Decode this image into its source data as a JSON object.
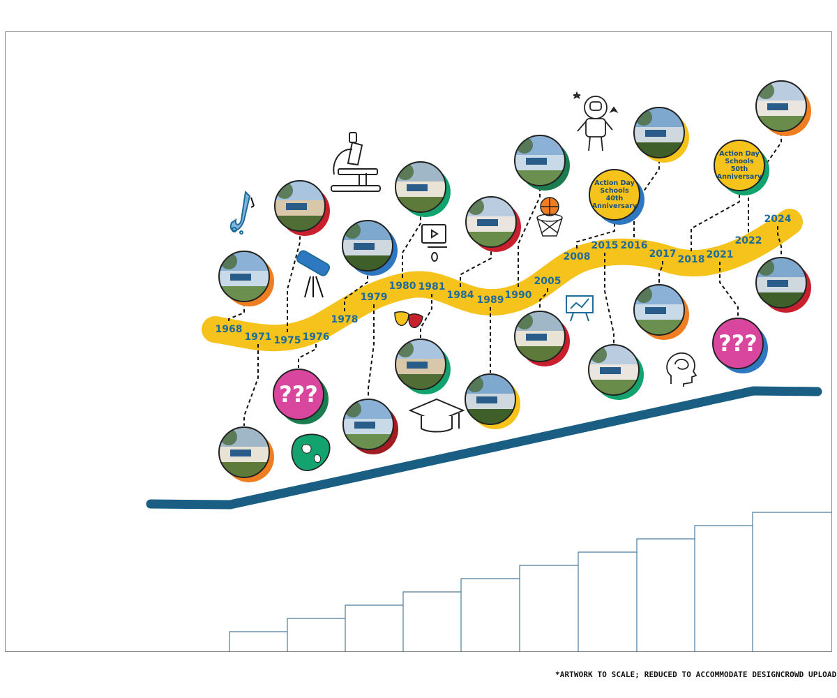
{
  "footnote": "*ARTWORK TO SCALE; REDUCED TO ACCOMMODATE DESIGNCROWD UPLOAD SIZE.",
  "colors": {
    "ribbon": "#f6c21c",
    "year_text": "#1f6b99",
    "ramp": "#1a5e84",
    "question_fill": "#d9469d",
    "annotation_fill": "#f6c21c",
    "accent_red": "#c8202d",
    "accent_orange": "#ef7d22",
    "accent_green": "#13a36e",
    "accent_blue": "#2e78c2",
    "accent_darkgreen": "#1b7c4f",
    "accent_darkred": "#a01d22",
    "stair_line": "#4a7c9a"
  },
  "timeline": {
    "years": [
      "1968",
      "1971",
      "1975",
      "1976",
      "1978",
      "1979",
      "1980",
      "1981",
      "1984",
      "1989",
      "1990",
      "2005",
      "2008",
      "2015",
      "2016",
      "2017",
      "2018",
      "2021",
      "2022",
      "2024"
    ],
    "question_marks": "???",
    "anniversary_40": [
      "Action Day",
      "Schools",
      "40th",
      "Anniversary"
    ],
    "anniversary_50": [
      "Action Day",
      "Schools",
      "50th",
      "Anniversary"
    ]
  },
  "photos": [
    {
      "id": "1968",
      "type": "photo",
      "accent": "orange"
    },
    {
      "id": "1971",
      "type": "photo",
      "accent": "orange"
    },
    {
      "id": "1975",
      "type": "photo",
      "accent": "red"
    },
    {
      "id": "1976",
      "type": "question",
      "accent": "darkgreen"
    },
    {
      "id": "1978",
      "type": "photo",
      "accent": "blue"
    },
    {
      "id": "1979",
      "type": "photo",
      "accent": "darkred"
    },
    {
      "id": "1980",
      "type": "photo",
      "accent": "green"
    },
    {
      "id": "1981",
      "type": "photo",
      "accent": "green"
    },
    {
      "id": "1984",
      "type": "photo",
      "accent": "red"
    },
    {
      "id": "1989",
      "type": "photo",
      "accent": "yellow"
    },
    {
      "id": "1990",
      "type": "photo",
      "accent": "darkgreen"
    },
    {
      "id": "2005",
      "type": "photo",
      "accent": "red"
    },
    {
      "id": "2008",
      "type": "anniversary40",
      "accent": "blue"
    },
    {
      "id": "2015",
      "type": "photo",
      "accent": "green"
    },
    {
      "id": "2016",
      "type": "photo",
      "accent": "yellow"
    },
    {
      "id": "2017",
      "type": "photo",
      "accent": "orange"
    },
    {
      "id": "2018",
      "type": "anniversary50",
      "accent": "green"
    },
    {
      "id": "2021",
      "type": "question",
      "accent": "blue"
    },
    {
      "id": "2022",
      "type": "photo",
      "accent": "orange"
    },
    {
      "id": "2024",
      "type": "photo",
      "accent": "red"
    }
  ],
  "icons": [
    "saxophone-icon",
    "telescope-icon",
    "microscope-icon",
    "computer-icon",
    "theater-masks-icon",
    "graduation-cap-icon",
    "basketball-hoop-icon",
    "astronaut-icon",
    "presentation-board-icon",
    "brain-head-icon",
    "globe-icon"
  ]
}
